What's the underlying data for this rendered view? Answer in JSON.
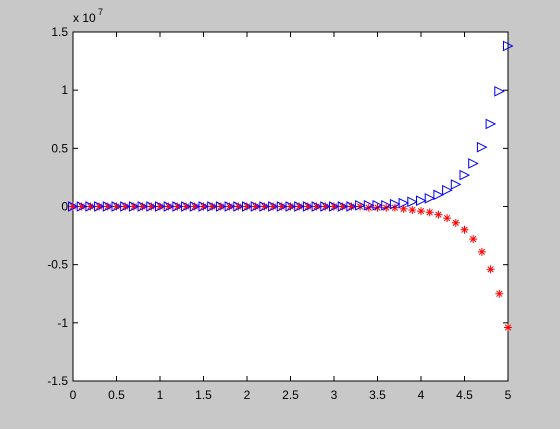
{
  "chart_data": {
    "type": "scatter",
    "exponent_base": "x 10",
    "exponent_power": "7",
    "x": [
      0,
      0.1,
      0.2,
      0.3,
      0.4,
      0.5,
      0.6,
      0.7,
      0.8,
      0.9,
      1,
      1.1,
      1.2,
      1.3,
      1.4,
      1.5,
      1.6,
      1.7,
      1.8,
      1.9,
      2,
      2.1,
      2.2,
      2.3,
      2.4,
      2.5,
      2.6,
      2.7,
      2.8,
      2.9,
      3,
      3.1,
      3.2,
      3.3,
      3.4,
      3.5,
      3.6,
      3.7,
      3.8,
      3.9,
      4,
      4.1,
      4.2,
      4.3,
      4.4,
      4.5,
      4.6,
      4.7,
      4.8,
      4.9,
      5
    ],
    "series": [
      {
        "color": "#ff0000",
        "marker": "asterisk",
        "values": [
          0,
          0,
          0,
          0,
          0,
          0,
          0,
          0,
          0,
          0,
          0,
          0,
          0,
          0,
          0,
          0,
          0,
          0,
          0,
          0,
          0,
          0,
          0,
          0,
          0,
          0,
          0,
          0,
          0,
          0,
          0,
          0,
          0,
          0,
          -0.01,
          -0.01,
          -0.01,
          -0.01,
          -0.02,
          -0.03,
          -0.04,
          -0.05,
          -0.07,
          -0.1,
          -0.14,
          -0.2,
          -0.28,
          -0.39,
          -0.54,
          -0.75,
          -1.04
        ]
      },
      {
        "color": "#0000ff",
        "marker": "triangle-right",
        "values": [
          0,
          0,
          0,
          0,
          0,
          0,
          0,
          0,
          0,
          0,
          0,
          0,
          0,
          0,
          0,
          0,
          0,
          0,
          0,
          0,
          0,
          0,
          0,
          0,
          0,
          0,
          0,
          0,
          0,
          0,
          0,
          0,
          0,
          0.01,
          0.01,
          0.01,
          0.01,
          0.02,
          0.03,
          0.04,
          0.05,
          0.07,
          0.1,
          0.14,
          0.19,
          0.27,
          0.37,
          0.51,
          0.71,
          0.99,
          1.38
        ]
      }
    ],
    "xlim": [
      0,
      5
    ],
    "xticks": [
      0,
      0.5,
      1,
      1.5,
      2,
      2.5,
      3,
      3.5,
      4,
      4.5,
      5
    ],
    "ylim": [
      -1.5,
      1.5
    ],
    "yticks": [
      -1.5,
      -1,
      -0.5,
      0,
      0.5,
      1,
      1.5
    ],
    "grid": false
  }
}
